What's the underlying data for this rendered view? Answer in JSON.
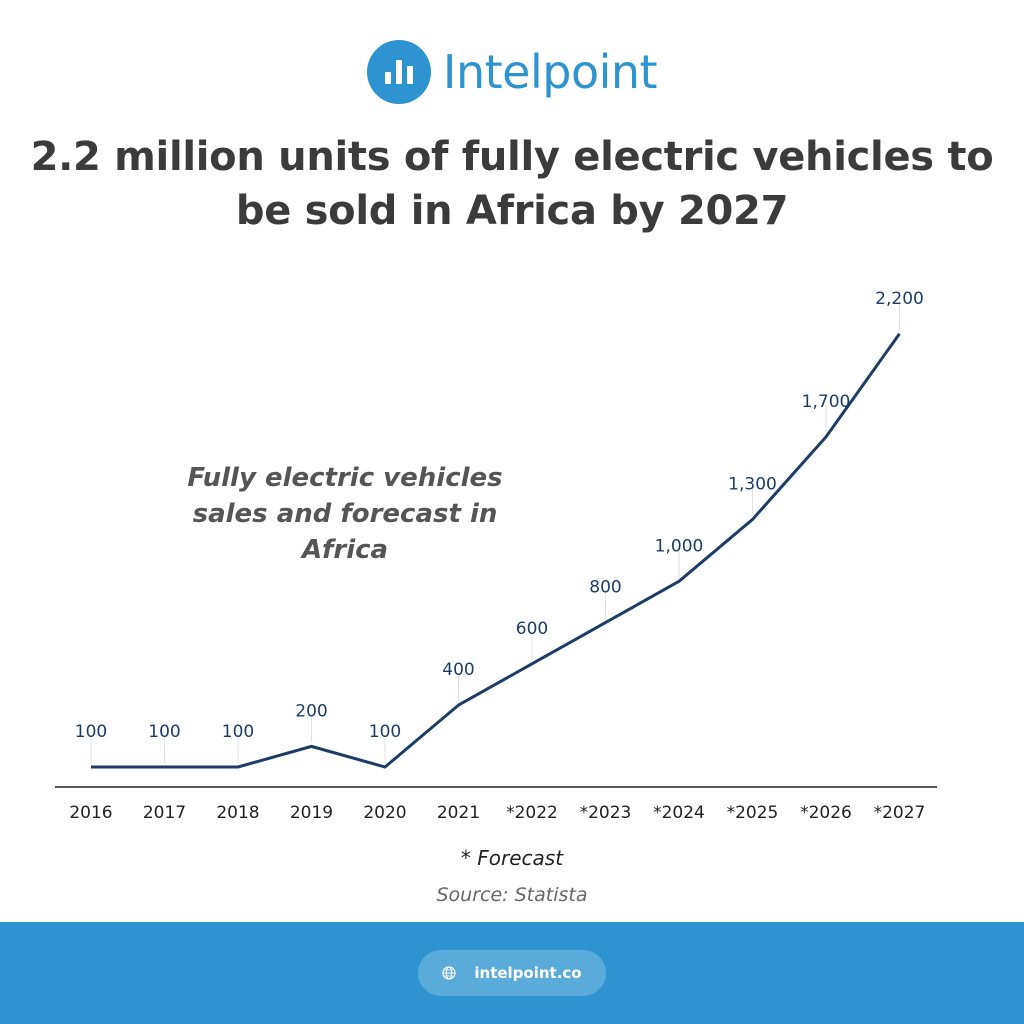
{
  "brand": {
    "name": "Intelpoint",
    "icon": "bar-chart-logo-icon",
    "color": "#2e94d0"
  },
  "headline": "2.2 million units of fully electric vehicles to be sold in Africa by 2027",
  "chart_data": {
    "type": "line",
    "title": "Fully electric vehicles sales and forecast in Africa",
    "categories": [
      "2016",
      "2017",
      "2018",
      "2019",
      "2020",
      "2021",
      "*2022",
      "*2023",
      "*2024",
      "*2025",
      "*2026",
      "*2027"
    ],
    "series": [
      {
        "values": [
          100,
          100,
          100,
          200,
          100,
          400,
          600,
          800,
          1000,
          1300,
          1700,
          2200
        ],
        "color": "#1d3d66"
      }
    ],
    "data_labels": [
      "100",
      "100",
      "100",
      "200",
      "100",
      "400",
      "600",
      "800",
      "1,000",
      "1,300",
      "1,700",
      "2,200"
    ],
    "xlabel": "",
    "ylabel": "",
    "ylim": [
      0,
      2200
    ],
    "grid": false,
    "legend": "none"
  },
  "note": "* Forecast",
  "source": "Source: Statista",
  "footer": {
    "url": "intelpoint.co",
    "icon": "globe-icon"
  }
}
